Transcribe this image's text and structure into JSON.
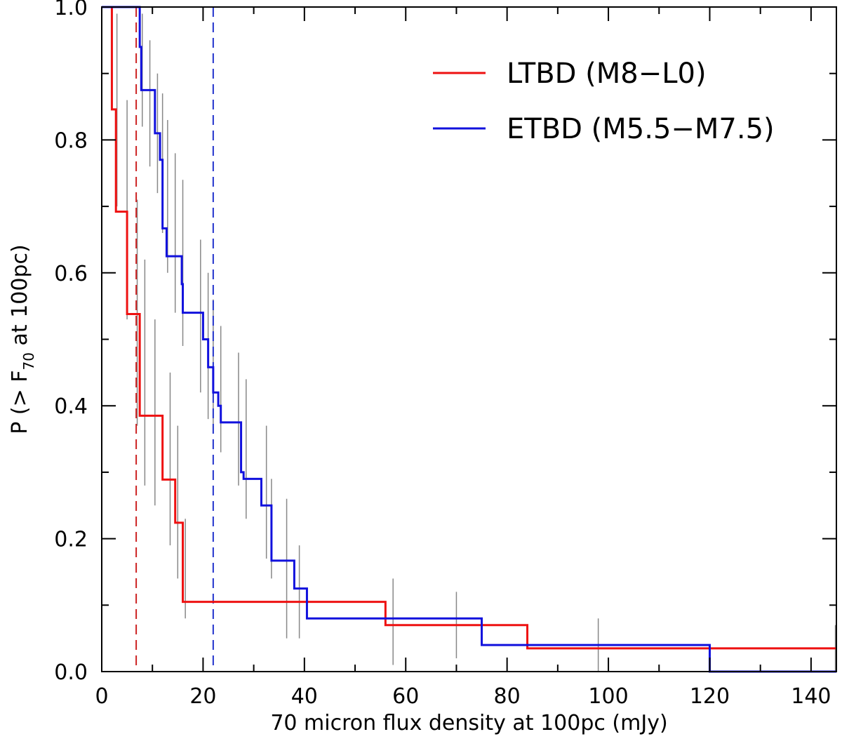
{
  "chart_data": {
    "type": "line",
    "step": true,
    "xlabel": "70 micron flux density at 100pc (mJy)",
    "ylabel_parts": {
      "prefix": "P (> F",
      "sub": "70",
      "suffix": " at 100pc)"
    },
    "xlim": [
      0,
      145
    ],
    "ylim": [
      0,
      1.0
    ],
    "x_ticks": [
      0,
      20,
      40,
      60,
      80,
      100,
      120,
      140
    ],
    "y_ticks": [
      0.0,
      0.2,
      0.4,
      0.6,
      0.8,
      1.0
    ],
    "x_tick_labels": [
      "0",
      "20",
      "40",
      "60",
      "80",
      "100",
      "120",
      "140"
    ],
    "y_tick_labels": [
      "0.0",
      "0.2",
      "0.4",
      "0.6",
      "0.8",
      "1.0"
    ],
    "legend_position": "top-right",
    "series": [
      {
        "name": "LTBD (M8−L0)",
        "color": "#ee1111",
        "steps": [
          [
            0,
            1.0
          ],
          [
            2.0,
            0.846
          ],
          [
            2.8,
            0.692
          ],
          [
            5.0,
            0.538
          ],
          [
            7.5,
            0.385
          ],
          [
            12.0,
            0.385
          ],
          [
            12.0,
            0.289
          ],
          [
            14.5,
            0.224
          ],
          [
            16.0,
            0.105
          ],
          [
            56.0,
            0.07
          ],
          [
            84.0,
            0.035
          ],
          [
            145,
            0.035
          ]
        ],
        "error_bars": [
          [
            3.0,
            0.7,
            0.99
          ],
          [
            5.0,
            0.53,
            0.86
          ],
          [
            7.0,
            0.37,
            0.71
          ],
          [
            8.5,
            0.28,
            0.62
          ],
          [
            10.5,
            0.25,
            0.53
          ],
          [
            13.5,
            0.19,
            0.45
          ],
          [
            15.0,
            0.14,
            0.37
          ],
          [
            16.5,
            0.08,
            0.23
          ],
          [
            57.5,
            0.01,
            0.14
          ],
          [
            70.0,
            0.02,
            0.12
          ],
          [
            98.0,
            0.0,
            0.08
          ],
          [
            144.8,
            0.0,
            0.07
          ]
        ]
      },
      {
        "name": "ETBD (M5.5−M7.5)",
        "color": "#1111dd",
        "steps": [
          [
            0,
            1.0
          ],
          [
            7.5,
            0.94
          ],
          [
            7.8,
            0.875
          ],
          [
            10.5,
            0.81
          ],
          [
            11.5,
            0.77
          ],
          [
            12.0,
            0.667
          ],
          [
            12.8,
            0.625
          ],
          [
            15.8,
            0.583
          ],
          [
            16.0,
            0.54
          ],
          [
            20.0,
            0.5
          ],
          [
            21.0,
            0.458
          ],
          [
            22.0,
            0.42
          ],
          [
            23.0,
            0.4
          ],
          [
            23.5,
            0.375
          ],
          [
            27.5,
            0.3
          ],
          [
            28.0,
            0.29
          ],
          [
            31.5,
            0.25
          ],
          [
            33.5,
            0.167
          ],
          [
            38.0,
            0.125
          ],
          [
            40.5,
            0.08
          ],
          [
            75.0,
            0.04
          ],
          [
            120.0,
            0.0
          ],
          [
            145,
            0.0
          ]
        ],
        "error_bars": [
          [
            8.0,
            0.82,
            0.99
          ],
          [
            9.5,
            0.76,
            0.95
          ],
          [
            11.0,
            0.72,
            0.9
          ],
          [
            12.0,
            0.66,
            0.87
          ],
          [
            13.0,
            0.6,
            0.83
          ],
          [
            14.5,
            0.54,
            0.78
          ],
          [
            16.0,
            0.49,
            0.74
          ],
          [
            19.5,
            0.42,
            0.65
          ],
          [
            21.0,
            0.38,
            0.6
          ],
          [
            22.0,
            0.36,
            0.56
          ],
          [
            23.5,
            0.33,
            0.52
          ],
          [
            27.0,
            0.28,
            0.48
          ],
          [
            28.5,
            0.23,
            0.44
          ],
          [
            32.5,
            0.17,
            0.37
          ],
          [
            33.5,
            0.14,
            0.29
          ],
          [
            36.5,
            0.05,
            0.26
          ],
          [
            39.0,
            0.05,
            0.19
          ]
        ]
      }
    ],
    "vertical_reference_lines": [
      {
        "x": 6.8,
        "color": "#cc2222",
        "dashed": true
      },
      {
        "x": 22.0,
        "color": "#2233cc",
        "dashed": true
      }
    ],
    "error_bar_color": "#888888"
  }
}
